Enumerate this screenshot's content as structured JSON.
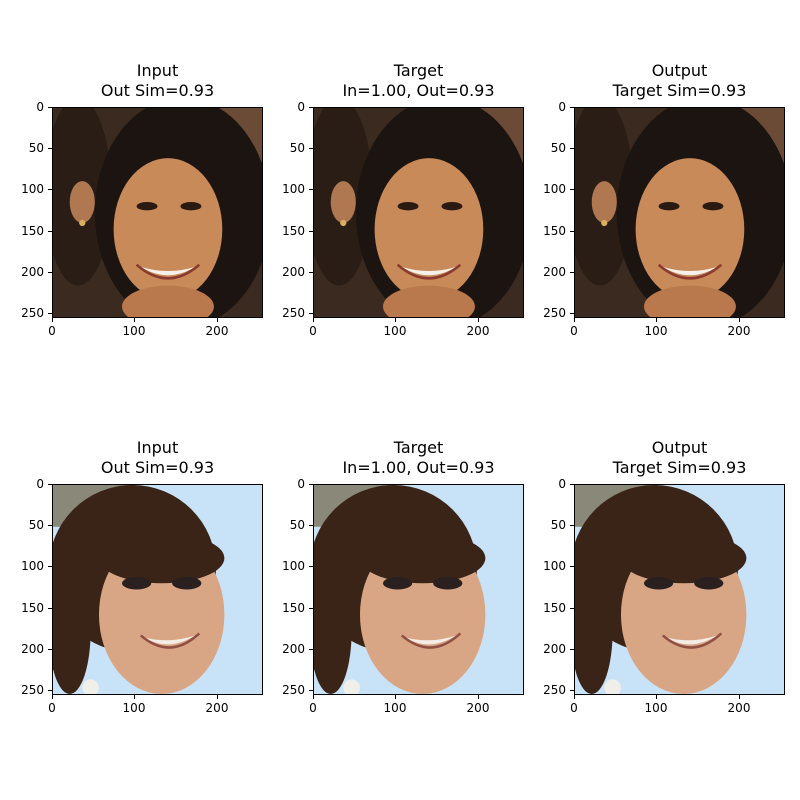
{
  "panels": [
    {
      "title_line1": "Input",
      "title_line2": "Out Sim=0.93",
      "face": "woman-1"
    },
    {
      "title_line1": "Target",
      "title_line2": "In=1.00, Out=0.93",
      "face": "woman-1"
    },
    {
      "title_line1": "Output",
      "title_line2": "Target Sim=0.93",
      "face": "woman-1"
    },
    {
      "title_line1": "Input",
      "title_line2": "Out Sim=0.93",
      "face": "woman-2"
    },
    {
      "title_line1": "Target",
      "title_line2": "In=1.00, Out=0.93",
      "face": "woman-2"
    },
    {
      "title_line1": "Output",
      "title_line2": "Target Sim=0.93",
      "face": "woman-2"
    }
  ],
  "axes": {
    "x_ticks": [
      "0",
      "100",
      "200"
    ],
    "y_ticks": [
      "0",
      "50",
      "100",
      "150",
      "200",
      "250"
    ]
  },
  "colors": {
    "face1_bg": "#3b2a1f",
    "face1_skin": "#c98a5a",
    "face1_hair": "#1c1410",
    "face2_sky": "#c8e2f7",
    "face2_skin": "#d9a685",
    "face2_hair": "#3a2418"
  }
}
